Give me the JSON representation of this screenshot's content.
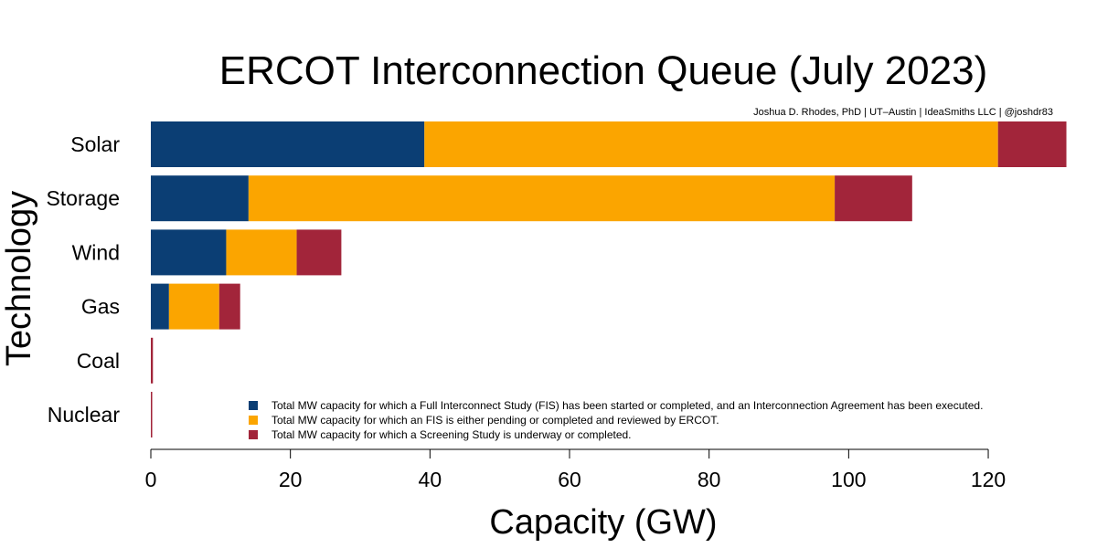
{
  "chart_data": {
    "type": "bar",
    "orientation": "horizontal",
    "stacked": true,
    "title": "ERCOT Interconnection Queue (July 2023)",
    "credit": "Joshua D. Rhodes, PhD | UT–Austin | IdeaSmiths LLC | @joshdr83",
    "xlabel": "Capacity (GW)",
    "ylabel": "Technology",
    "xlim": [
      0,
      131
    ],
    "xticks": [
      0,
      20,
      40,
      60,
      80,
      100,
      120
    ],
    "categories": [
      "Solar",
      "Storage",
      "Wind",
      "Gas",
      "Coal",
      "Nuclear"
    ],
    "series": [
      {
        "name": "Total MW capacity for which a Full Interconnect Study (FIS) has been started or completed, and an Interconnection Agreement has been executed.",
        "color": "#0b3e74",
        "values": [
          39.2,
          14.0,
          10.8,
          2.6,
          0.0,
          0.0
        ]
      },
      {
        "name": "Total MW capacity for which an FIS is either pending or completed and reviewed by ERCOT.",
        "color": "#fba500",
        "values": [
          82.2,
          84.0,
          10.1,
          7.2,
          0.0,
          0.0
        ]
      },
      {
        "name": "Total MW capacity for which a Screening Study is underway or completed.",
        "color": "#a2253a",
        "values": [
          9.8,
          11.1,
          6.4,
          3.0,
          0.3,
          0.2
        ]
      }
    ],
    "legend_position": "bottom-right",
    "grid": false
  }
}
